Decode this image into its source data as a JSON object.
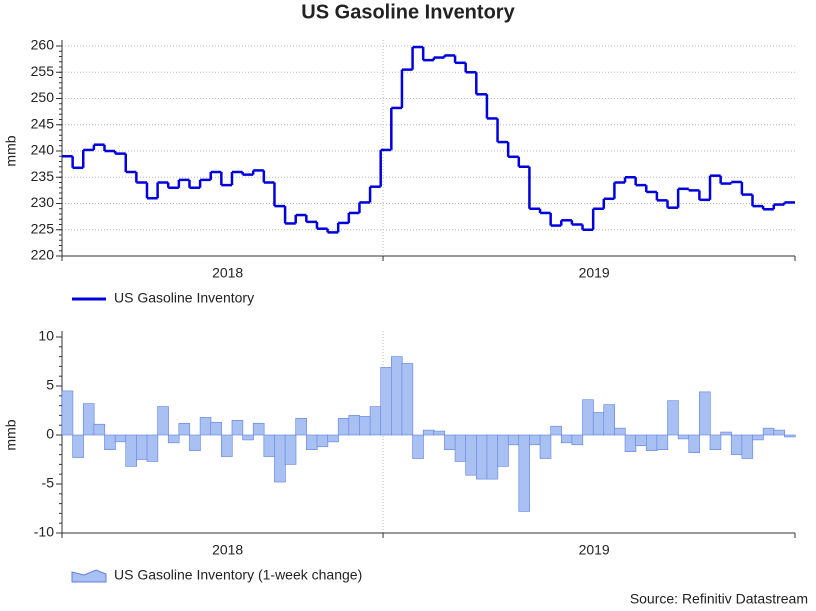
{
  "chart_data": [
    {
      "type": "step-line",
      "title": "US Gasoline Inventory",
      "y_label": "mmb",
      "x_labels": [
        "2018",
        "2019"
      ],
      "series": [
        {
          "name": "US Gasoline Inventory",
          "color": "#0000dd",
          "values": [
            239,
            236.8,
            240.2,
            241.2,
            240,
            239.5,
            236,
            234,
            231,
            234,
            233,
            234.5,
            233,
            234.5,
            236,
            233.5,
            236,
            235.5,
            236.3,
            234,
            229.5,
            226.2,
            227.8,
            226.5,
            225.2,
            224.5,
            226.3,
            228.2,
            230.2,
            233.2,
            240.2,
            248.2,
            255.5,
            259.8,
            257.3,
            257.8,
            258.2,
            256.8,
            255,
            250.8,
            246.2,
            241.7,
            238.9,
            237,
            229,
            228.2,
            225.8,
            226.8,
            226,
            225,
            229,
            230.9,
            234,
            235,
            233.5,
            232.2,
            230.6,
            229.2,
            232.8,
            232.5,
            230.7,
            235.3,
            233.8,
            234.1,
            231.7,
            229.5,
            228.9,
            229.8,
            230.2
          ]
        }
      ],
      "ylim": [
        220,
        260
      ],
      "yticks": [
        220,
        225,
        230,
        235,
        240,
        245,
        250,
        255,
        260
      ],
      "grid": true
    },
    {
      "type": "step-area",
      "y_label": "mmb",
      "x_labels": [
        "2018",
        "2019"
      ],
      "series": [
        {
          "name": "US Gasoline Inventory (1-week change)",
          "color": "#a9c1f2",
          "edge_color": "#5f7fe0",
          "values": [
            4.5,
            -2.3,
            3.2,
            1.1,
            -1.5,
            -0.7,
            -3.2,
            -2.5,
            -2.7,
            2.9,
            -0.8,
            1.2,
            -1.6,
            1.8,
            1.3,
            -2.2,
            1.5,
            -0.5,
            1.2,
            -2.2,
            -4.8,
            -3.0,
            1.7,
            -1.5,
            -1.2,
            -0.7,
            1.7,
            2.0,
            1.9,
            2.9,
            6.9,
            8.0,
            7.3,
            -2.4,
            0.5,
            0.4,
            -1.5,
            -2.7,
            -4.1,
            -4.5,
            -4.5,
            -3.2,
            -1.0,
            -7.8,
            -1.0,
            -2.4,
            0.9,
            -0.8,
            -1.0,
            3.6,
            2.3,
            3.1,
            0.7,
            -1.7,
            -1.1,
            -1.6,
            -1.5,
            3.5,
            -0.4,
            -1.8,
            4.4,
            -1.5,
            0.3,
            -2.0,
            -2.4,
            -0.5,
            0.7,
            0.5,
            -0.2
          ]
        }
      ],
      "ylim": [
        -10,
        10
      ],
      "yticks": [
        -10,
        -5,
        0,
        5,
        10
      ],
      "grid": false,
      "source": "Source: Refinitiv Datastream"
    }
  ]
}
